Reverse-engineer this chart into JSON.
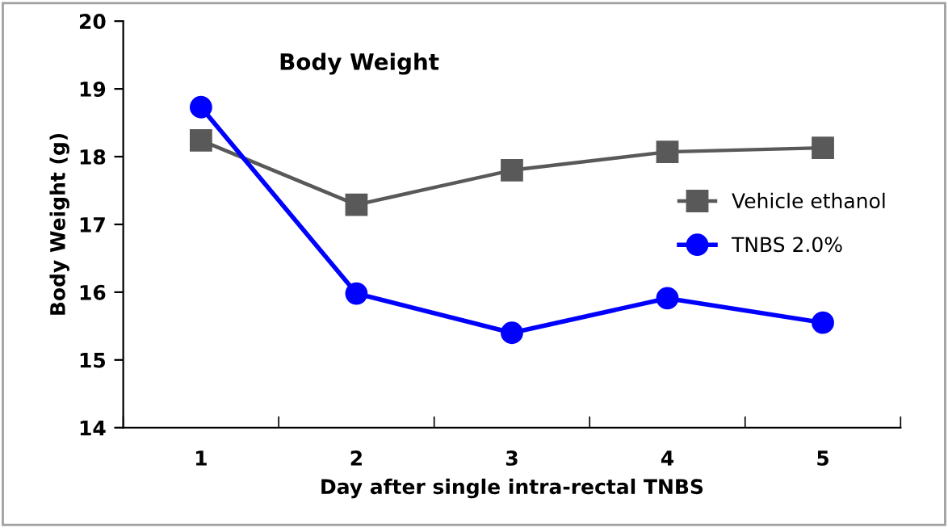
{
  "chart_data": {
    "type": "line",
    "title": "Body Weight",
    "xlabel": "Day after single intra-rectal TNBS",
    "ylabel": "Body Weight (g)",
    "categories": [
      "1",
      "2",
      "3",
      "4",
      "5"
    ],
    "series": [
      {
        "name": "Vehicle ethanol",
        "color": "#595959",
        "marker": "square",
        "values": [
          18.24,
          17.29,
          17.8,
          18.07,
          18.13
        ]
      },
      {
        "name": "TNBS 2.0%",
        "color": "#0000ff",
        "marker": "circle",
        "values": [
          18.73,
          15.98,
          15.4,
          15.91,
          15.55
        ]
      }
    ],
    "ylim": [
      14,
      20
    ],
    "yticks": [
      14,
      15,
      16,
      17,
      18,
      19,
      20
    ],
    "grid": false,
    "legend": "right"
  }
}
